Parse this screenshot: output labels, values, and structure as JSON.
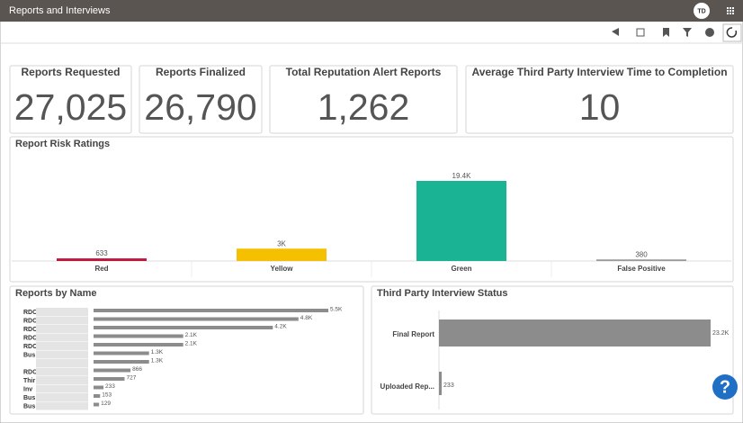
{
  "header": {
    "title": "Reports and Interviews",
    "initials": "TD"
  },
  "kpis": [
    {
      "label": "Reports Requested",
      "value": "27,025"
    },
    {
      "label": "Reports Finalized",
      "value": "26,790"
    },
    {
      "label": "Total Reputation Alert Reports",
      "value": "1,262"
    },
    {
      "label": "Average Third Party Interview Time to Completion",
      "value": "10"
    }
  ],
  "chart_data": [
    {
      "type": "bar",
      "title": "Report Risk Ratings",
      "categories": [
        "Red",
        "Yellow",
        "Green",
        "False Positive"
      ],
      "values": [
        633,
        3000,
        19400,
        380
      ],
      "value_labels": [
        "633",
        "3K",
        "19.4K",
        "380"
      ],
      "colors": [
        "#c0143c",
        "#f5c000",
        "#1ab394",
        "#999999"
      ]
    },
    {
      "type": "barh",
      "title": "Reports by Name",
      "categories": [
        "RDC",
        "RDC",
        "RDC",
        "RDC",
        "RDC",
        "Bus",
        null,
        "RDC",
        "Thir",
        "Inv",
        "Bus",
        "Bus"
      ],
      "values": [
        5500,
        4800,
        4200,
        2100,
        2100,
        1300,
        1300,
        866,
        727,
        233,
        153,
        129
      ],
      "value_labels": [
        "5.5K",
        "4.8K",
        "4.2K",
        "2.1K",
        "2.1K",
        "1.3K",
        "1.3K",
        "866",
        "727",
        "233",
        "153",
        "129"
      ],
      "color": "#8c8c8c"
    },
    {
      "type": "barh",
      "title": "Third Party Interview Status",
      "categories": [
        "Final Report",
        "Uploaded Rep..."
      ],
      "values": [
        23200,
        233
      ],
      "value_labels": [
        "23.2K",
        "233"
      ],
      "color": "#8c8c8c"
    }
  ]
}
